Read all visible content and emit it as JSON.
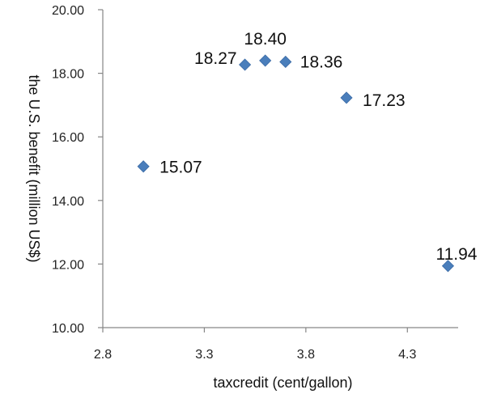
{
  "chart_data": {
    "type": "scatter",
    "title": "",
    "xlabel": "taxcredit (cent/gallon)",
    "ylabel": "the U.S. benefit (million US$)",
    "xlim": [
      2.8,
      4.55
    ],
    "ylim": [
      10.0,
      20.0
    ],
    "xticks": [
      2.8,
      3.3,
      3.8,
      4.3
    ],
    "xtick_labels": [
      "2.8",
      "3.3",
      "3.8",
      "4.3"
    ],
    "yticks": [
      10,
      12,
      14,
      16,
      18,
      20
    ],
    "ytick_labels": [
      "10.00",
      "12.00",
      "14.00",
      "16.00",
      "18.00",
      "20.00"
    ],
    "grid": false,
    "legend": "none",
    "marker_color": "#4a7ebb",
    "points": [
      {
        "x": 3.0,
        "y": 15.07,
        "label": "15.07"
      },
      {
        "x": 3.5,
        "y": 18.27,
        "label": "18.27"
      },
      {
        "x": 3.6,
        "y": 18.4,
        "label": "18.40"
      },
      {
        "x": 3.7,
        "y": 18.36,
        "label": "18.36"
      },
      {
        "x": 4.0,
        "y": 17.23,
        "label": "17.23"
      },
      {
        "x": 4.5,
        "y": 11.94,
        "label": "11.94"
      }
    ]
  }
}
